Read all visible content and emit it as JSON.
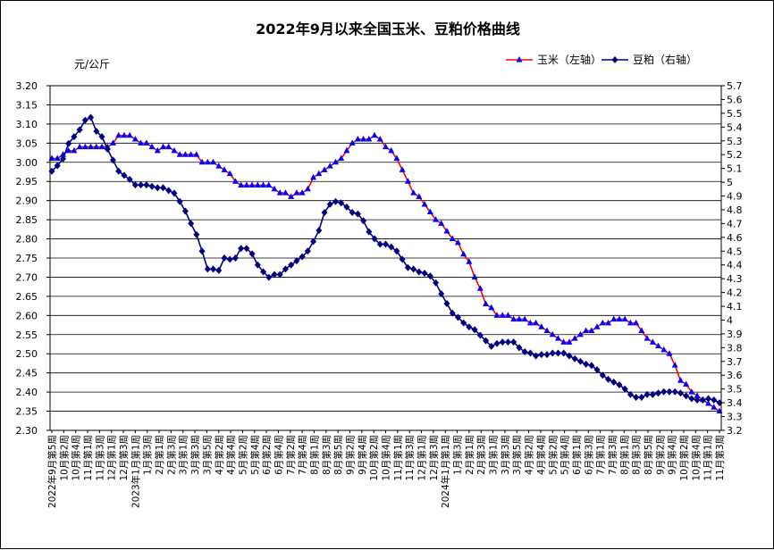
{
  "chart_data": {
    "type": "line",
    "title": "2022年9月以来全国玉米、豆粕价格曲线",
    "y_unit": "元/公斤",
    "ylim_left": [
      2.3,
      3.2
    ],
    "ylim_right": [
      3.2,
      5.7
    ],
    "yticks_left": [
      "2.30",
      "2.35",
      "2.40",
      "2.45",
      "2.50",
      "2.55",
      "2.60",
      "2.65",
      "2.70",
      "2.75",
      "2.80",
      "2.85",
      "2.90",
      "2.95",
      "3.00",
      "3.05",
      "3.10",
      "3.15",
      "3.20"
    ],
    "yticks_right": [
      "3.2",
      "3.3",
      "3.4",
      "3.5",
      "3.6",
      "3.7",
      "3.8",
      "3.9",
      "4",
      "4.1",
      "4.2",
      "4.3",
      "4.4",
      "4.5",
      "4.6",
      "4.7",
      "4.8",
      "4.9",
      "5",
      "5.1",
      "5.2",
      "5.3",
      "5.4",
      "5.5",
      "5.6",
      "5.7"
    ],
    "grid": true,
    "legend_position": "top-right",
    "xtick_labels": [
      "2022年9月第5周",
      "10月第2周",
      "10月第4周",
      "11月第1周",
      "11月第3周",
      "12月第1周",
      "12月第3周",
      "2023年1月第1周",
      "1月第3周",
      "2月第1周",
      "2月第3周",
      "3月第1周",
      "3月第3周",
      "3月第5周",
      "4月第2周",
      "4月第4周",
      "5月第2周",
      "5月第4周",
      "6月第2周",
      "6月第4周",
      "7月第2周",
      "7月第4周",
      "8月第1周",
      "8月第3周",
      "8月第5周",
      "9月第2周",
      "9月第4周",
      "10月第2周",
      "10月第4周",
      "11月第1周",
      "11月第3周",
      "12月第1周",
      "12月第3周",
      "2024年1月第1周",
      "1月第3周",
      "2月第1周",
      "2月第3周",
      "3月第1周",
      "3月第3周",
      "3月第5周",
      "4月第2周",
      "4月第4周",
      "5月第2周",
      "5月第4周",
      "6月第1周",
      "6月第3周",
      "7月第1周",
      "7月第3周",
      "8月第1周",
      "8月第3周",
      "8月第5周",
      "9月第2周",
      "9月第4周",
      "10月第2周",
      "10月第4周",
      "11月第1周",
      "11月第3周"
    ],
    "series": [
      {
        "name": "玉米（左轴）",
        "axis": "left",
        "color": "#ff0000",
        "marker_color": "#0000ff",
        "marker": "triangle",
        "values": [
          3.01,
          3.01,
          3.02,
          3.03,
          3.03,
          3.04,
          3.04,
          3.04,
          3.04,
          3.04,
          3.04,
          3.05,
          3.07,
          3.07,
          3.07,
          3.06,
          3.05,
          3.05,
          3.04,
          3.03,
          3.04,
          3.04,
          3.03,
          3.02,
          3.02,
          3.02,
          3.02,
          3.0,
          3.0,
          3.0,
          2.99,
          2.98,
          2.97,
          2.95,
          2.94,
          2.94,
          2.94,
          2.94,
          2.94,
          2.94,
          2.93,
          2.92,
          2.92,
          2.91,
          2.92,
          2.92,
          2.93,
          2.96,
          2.97,
          2.98,
          2.99,
          3.0,
          3.01,
          3.03,
          3.05,
          3.06,
          3.06,
          3.06,
          3.07,
          3.06,
          3.04,
          3.03,
          3.01,
          2.98,
          2.95,
          2.92,
          2.91,
          2.89,
          2.87,
          2.85,
          2.84,
          2.82,
          2.8,
          2.79,
          2.76,
          2.74,
          2.7,
          2.67,
          2.63,
          2.62,
          2.6,
          2.6,
          2.6,
          2.59,
          2.59,
          2.59,
          2.58,
          2.58,
          2.57,
          2.56,
          2.55,
          2.54,
          2.53,
          2.53,
          2.54,
          2.55,
          2.56,
          2.56,
          2.57,
          2.58,
          2.58,
          2.59,
          2.59,
          2.59,
          2.58,
          2.58,
          2.56,
          2.54,
          2.53,
          2.52,
          2.51,
          2.5,
          2.47,
          2.43,
          2.42,
          2.4,
          2.39,
          2.38,
          2.37,
          2.36,
          2.35
        ]
      },
      {
        "name": "豆粕（右轴）",
        "axis": "right",
        "color": "#000080",
        "marker_color": "#000080",
        "marker": "diamond",
        "values": [
          5.08,
          5.12,
          5.17,
          5.28,
          5.33,
          5.38,
          5.45,
          5.47,
          5.37,
          5.33,
          5.24,
          5.16,
          5.08,
          5.05,
          5.02,
          4.98,
          4.98,
          4.98,
          4.97,
          4.96,
          4.96,
          4.94,
          4.92,
          4.86,
          4.79,
          4.7,
          4.62,
          4.5,
          4.37,
          4.37,
          4.36,
          4.45,
          4.44,
          4.45,
          4.52,
          4.52,
          4.48,
          4.4,
          4.35,
          4.31,
          4.33,
          4.33,
          4.37,
          4.4,
          4.43,
          4.46,
          4.5,
          4.57,
          4.65,
          4.78,
          4.84,
          4.86,
          4.85,
          4.82,
          4.78,
          4.77,
          4.72,
          4.64,
          4.59,
          4.55,
          4.55,
          4.53,
          4.5,
          4.44,
          4.38,
          4.37,
          4.35,
          4.34,
          4.32,
          4.27,
          4.19,
          4.12,
          4.05,
          4.02,
          3.98,
          3.95,
          3.93,
          3.89,
          3.85,
          3.81,
          3.83,
          3.84,
          3.84,
          3.84,
          3.8,
          3.77,
          3.76,
          3.74,
          3.75,
          3.75,
          3.76,
          3.76,
          3.76,
          3.74,
          3.72,
          3.7,
          3.68,
          3.67,
          3.64,
          3.6,
          3.57,
          3.55,
          3.53,
          3.5,
          3.46,
          3.44,
          3.44,
          3.46,
          3.46,
          3.47,
          3.48,
          3.48,
          3.48,
          3.47,
          3.45,
          3.43,
          3.42,
          3.42,
          3.43,
          3.42,
          3.4
        ]
      }
    ]
  }
}
